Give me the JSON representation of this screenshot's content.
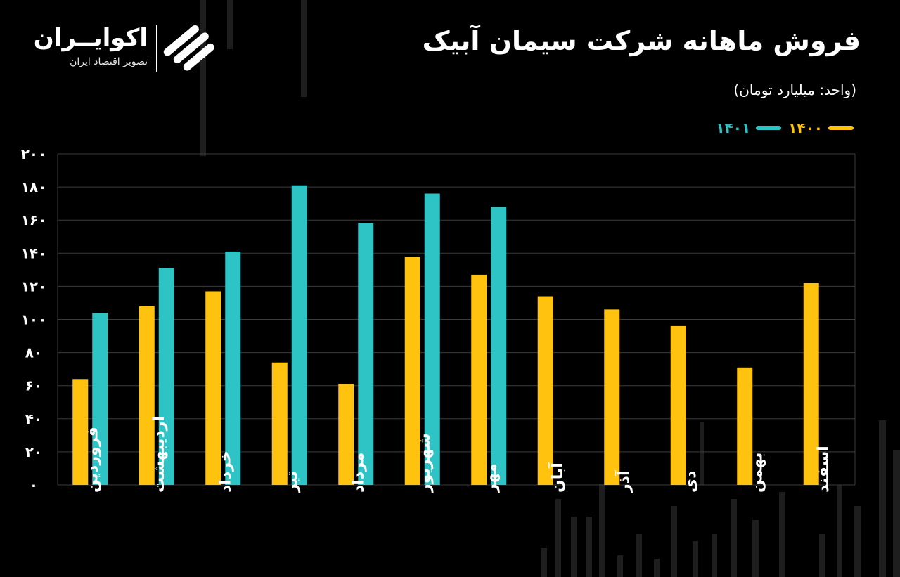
{
  "header": {
    "title": "فروش ماهانه شرکت سیمان آبیک",
    "subtitle": "(واحد: میلیارد تومان)"
  },
  "logo": {
    "name": "اکوایــران",
    "tagline": "تصویر اقتصاد ایران",
    "mark_icon": "ecoiran-logo-icon"
  },
  "legend": {
    "items": [
      {
        "label": "۱۴۰۰",
        "color": "#FFC20E"
      },
      {
        "label": "۱۴۰۱",
        "color": "#2EC4C6"
      }
    ]
  },
  "chart_data": {
    "type": "bar",
    "title": "فروش ماهانه شرکت سیمان آبیک",
    "ylabel": "",
    "xlabel": "",
    "ylim": [
      0,
      200
    ],
    "yticks": [
      0,
      20,
      40,
      60,
      80,
      100,
      120,
      140,
      160,
      180,
      200
    ],
    "ytick_labels": [
      "۰",
      "۲۰",
      "۴۰",
      "۶۰",
      "۸۰",
      "۱۰۰",
      "۱۲۰",
      "۱۴۰",
      "۱۶۰",
      "۱۸۰",
      "۲۰۰"
    ],
    "grid": true,
    "legend_position": "top-right",
    "categories": [
      "فروردین",
      "اردیبهشت",
      "خرداد",
      "تیر",
      "مرداد",
      "شهریور",
      "مهر",
      "آبان",
      "آذر",
      "دی",
      "بهمن",
      "اسفند"
    ],
    "series": [
      {
        "name": "۱۴۰۰",
        "color": "#FFC20E",
        "values": [
          64,
          108,
          117,
          74,
          61,
          138,
          127,
          114,
          106,
          96,
          71,
          122
        ]
      },
      {
        "name": "۱۴۰۱",
        "color": "#2EC4C6",
        "values": [
          104,
          131,
          141,
          181,
          158,
          176,
          168,
          null,
          null,
          null,
          null,
          null
        ]
      }
    ]
  }
}
